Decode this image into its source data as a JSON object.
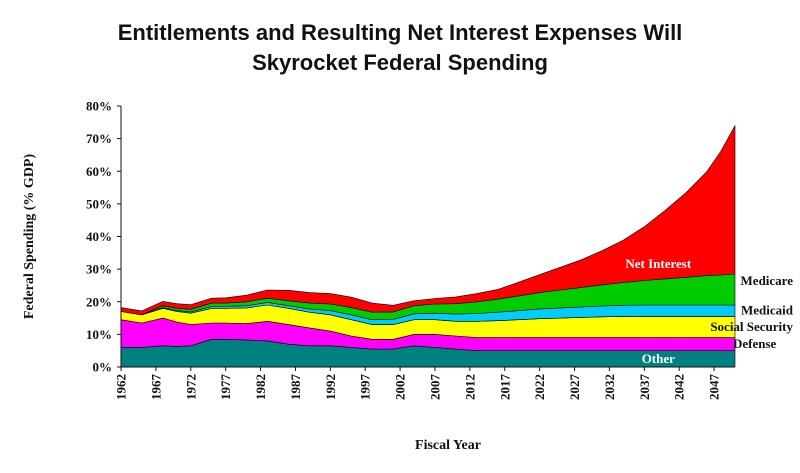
{
  "chart_data": {
    "type": "area",
    "stacked": true,
    "title": "Entitlements and Resulting Net Interest Expenses Will\nSkyrocket Federal Spending",
    "xlabel": "Fiscal Year",
    "ylabel": "Federal Spending (% GDP)",
    "xlim": [
      1962,
      2050
    ],
    "ylim": [
      0,
      80
    ],
    "y_tick_format": "percent",
    "x_ticks": [
      1962,
      1967,
      1972,
      1977,
      1982,
      1987,
      1992,
      1997,
      2002,
      2007,
      2012,
      2017,
      2022,
      2027,
      2032,
      2037,
      2042,
      2047
    ],
    "y_ticks": [
      0,
      10,
      20,
      30,
      40,
      50,
      60,
      70,
      80
    ],
    "grid": false,
    "x": [
      1962,
      1965,
      1968,
      1970,
      1972,
      1975,
      1977,
      1980,
      1983,
      1986,
      1989,
      1992,
      1995,
      1998,
      2001,
      2004,
      2007,
      2010,
      2013,
      2016,
      2019,
      2022,
      2025,
      2028,
      2031,
      2034,
      2037,
      2040,
      2043,
      2046,
      2048,
      2050
    ],
    "series": [
      {
        "name": "Other",
        "color": "#008080",
        "values": [
          6.0,
          6.0,
          6.5,
          6.3,
          6.5,
          8.5,
          8.5,
          8.3,
          8.0,
          7.0,
          6.5,
          6.5,
          6.0,
          5.5,
          5.5,
          6.5,
          6.0,
          5.5,
          5.0,
          5.0,
          5.0,
          5.0,
          5.0,
          5.0,
          5.0,
          5.0,
          5.0,
          5.0,
          5.0,
          5.0,
          5.0,
          5.0
        ]
      },
      {
        "name": "Defense",
        "color": "#ff00ff",
        "values": [
          8.5,
          7.5,
          8.5,
          7.5,
          6.5,
          5.0,
          5.0,
          5.0,
          6.0,
          6.0,
          5.5,
          4.5,
          3.5,
          3.0,
          3.0,
          3.5,
          4.0,
          4.0,
          4.0,
          4.0,
          4.0,
          4.0,
          4.0,
          4.0,
          4.0,
          4.0,
          4.0,
          4.0,
          4.0,
          4.0,
          4.0,
          4.0
        ]
      },
      {
        "name": "Social Security",
        "color": "#ffff00",
        "values": [
          2.5,
          2.5,
          3.0,
          3.2,
          3.5,
          4.5,
          4.5,
          4.8,
          5.0,
          5.0,
          4.8,
          5.0,
          5.0,
          4.5,
          4.5,
          4.5,
          4.5,
          4.5,
          5.0,
          5.2,
          5.5,
          5.8,
          6.0,
          6.2,
          6.4,
          6.5,
          6.5,
          6.5,
          6.5,
          6.5,
          6.5,
          6.5
        ]
      },
      {
        "name": "Medicaid",
        "color": "#00ccff",
        "values": [
          0.0,
          0.0,
          0.2,
          0.3,
          0.4,
          0.6,
          0.6,
          0.7,
          0.8,
          0.8,
          1.0,
          1.3,
          1.5,
          1.5,
          1.6,
          1.8,
          2.0,
          2.2,
          2.4,
          2.6,
          2.8,
          3.0,
          3.1,
          3.2,
          3.3,
          3.4,
          3.5,
          3.5,
          3.5,
          3.5,
          3.5,
          3.5
        ]
      },
      {
        "name": "Medicare",
        "color": "#00cc00",
        "values": [
          0.0,
          0.0,
          0.6,
          0.7,
          0.8,
          1.0,
          1.0,
          1.2,
          1.3,
          1.5,
          1.8,
          2.0,
          2.2,
          2.3,
          2.3,
          2.5,
          2.8,
          3.2,
          3.6,
          4.0,
          4.5,
          5.0,
          5.5,
          6.0,
          6.5,
          7.0,
          7.5,
          8.0,
          8.5,
          9.0,
          9.2,
          9.5
        ]
      },
      {
        "name": "Net Interest",
        "color": "#ff0000",
        "values": [
          1.2,
          1.2,
          1.3,
          1.4,
          1.4,
          1.5,
          1.6,
          2.0,
          2.5,
          3.2,
          3.2,
          3.2,
          3.2,
          2.8,
          2.0,
          1.5,
          1.7,
          2.1,
          2.5,
          3.0,
          4.2,
          5.5,
          7.0,
          8.5,
          10.5,
          13.0,
          16.5,
          21.0,
          26.0,
          32.0,
          38.0,
          45.5
        ]
      }
    ],
    "series_label_text": [
      "Other",
      "Defense",
      "Social Security",
      "Medicaid",
      "Medicare",
      "Net Interest"
    ],
    "series_label_colors": [
      "#ffffff",
      "#111111",
      "#111111",
      "#111111",
      "#111111",
      "#ffffff"
    ]
  }
}
